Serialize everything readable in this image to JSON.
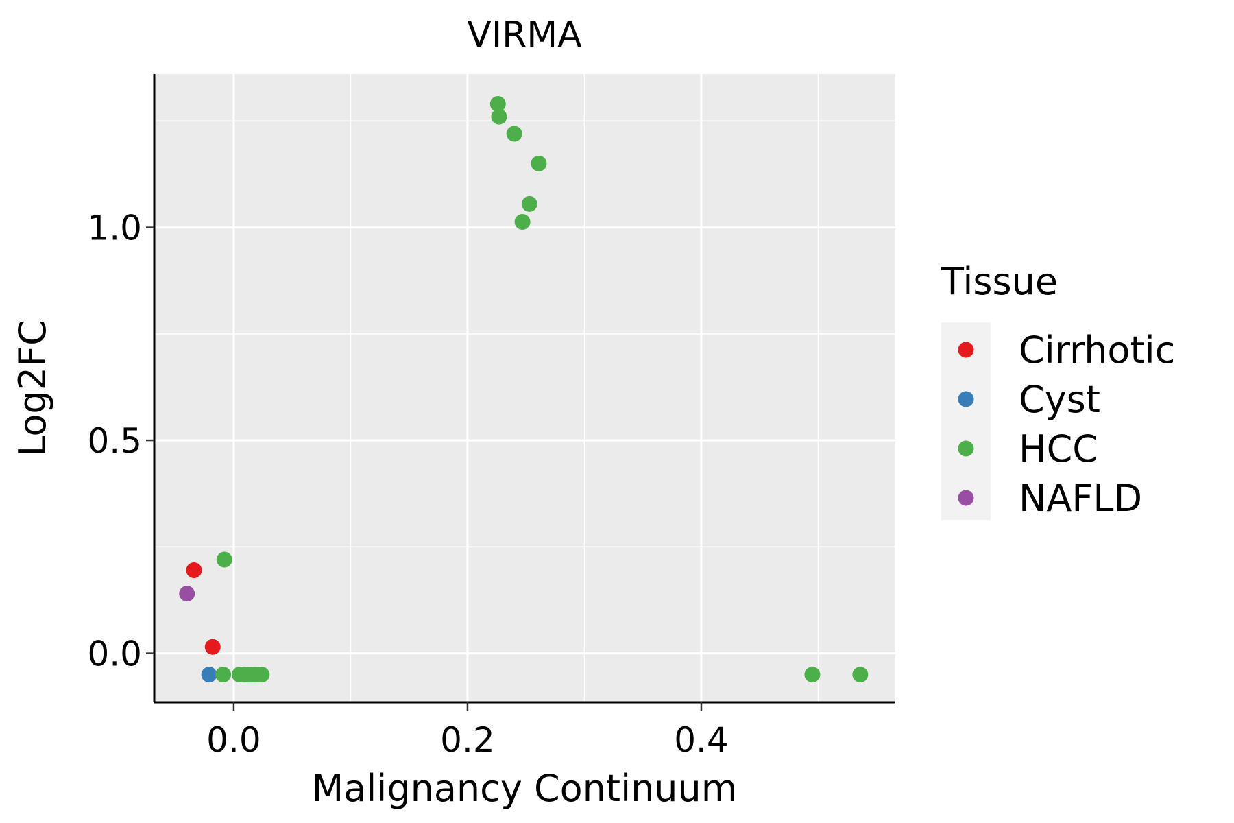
{
  "chart_data": {
    "type": "scatter",
    "title": "VIRMA",
    "xlabel": "Malignancy Continuum",
    "ylabel": "Log2FC",
    "xlim": [
      -0.068,
      0.566
    ],
    "ylim": [
      -0.115,
      1.36
    ],
    "x_ticks": [
      0.0,
      0.2,
      0.4
    ],
    "x_tick_labels": [
      "0.0",
      "0.2",
      "0.4"
    ],
    "y_ticks": [
      0.0,
      0.5,
      1.0
    ],
    "y_tick_labels": [
      "0.0",
      "0.5",
      "1.0"
    ],
    "grid": true,
    "legend": {
      "title": "Tissue",
      "position": "right",
      "entries": [
        {
          "name": "Cirrhotic",
          "color": "#E41A1C"
        },
        {
          "name": "Cyst",
          "color": "#377EB8"
        },
        {
          "name": "HCC",
          "color": "#4DAF4A"
        },
        {
          "name": "NAFLD",
          "color": "#984EA3"
        }
      ]
    },
    "series": [
      {
        "name": "Cirrhotic",
        "color": "#E41A1C",
        "points": [
          {
            "x": -0.034,
            "y": 0.195
          },
          {
            "x": -0.018,
            "y": 0.015
          }
        ]
      },
      {
        "name": "Cyst",
        "color": "#377EB8",
        "points": [
          {
            "x": -0.021,
            "y": -0.05
          }
        ]
      },
      {
        "name": "HCC",
        "color": "#4DAF4A",
        "points": [
          {
            "x": -0.008,
            "y": 0.22
          },
          {
            "x": -0.009,
            "y": -0.05
          },
          {
            "x": 0.005,
            "y": -0.05
          },
          {
            "x": 0.009,
            "y": -0.05
          },
          {
            "x": 0.012,
            "y": -0.05
          },
          {
            "x": 0.015,
            "y": -0.05
          },
          {
            "x": 0.018,
            "y": -0.05
          },
          {
            "x": 0.021,
            "y": -0.05
          },
          {
            "x": 0.024,
            "y": -0.05
          },
          {
            "x": 0.226,
            "y": 1.29
          },
          {
            "x": 0.227,
            "y": 1.26
          },
          {
            "x": 0.24,
            "y": 1.22
          },
          {
            "x": 0.261,
            "y": 1.15
          },
          {
            "x": 0.253,
            "y": 1.055
          },
          {
            "x": 0.247,
            "y": 1.013
          },
          {
            "x": 0.495,
            "y": -0.05
          },
          {
            "x": 0.536,
            "y": -0.05
          }
        ]
      },
      {
        "name": "NAFLD",
        "color": "#984EA3",
        "points": [
          {
            "x": -0.04,
            "y": 0.14
          }
        ]
      }
    ],
    "colors": {
      "panel_bg": "#EBEBEB",
      "grid": "#FFFFFF",
      "legend_key_bg": "#F2F2F2",
      "axis": "#000000"
    }
  }
}
